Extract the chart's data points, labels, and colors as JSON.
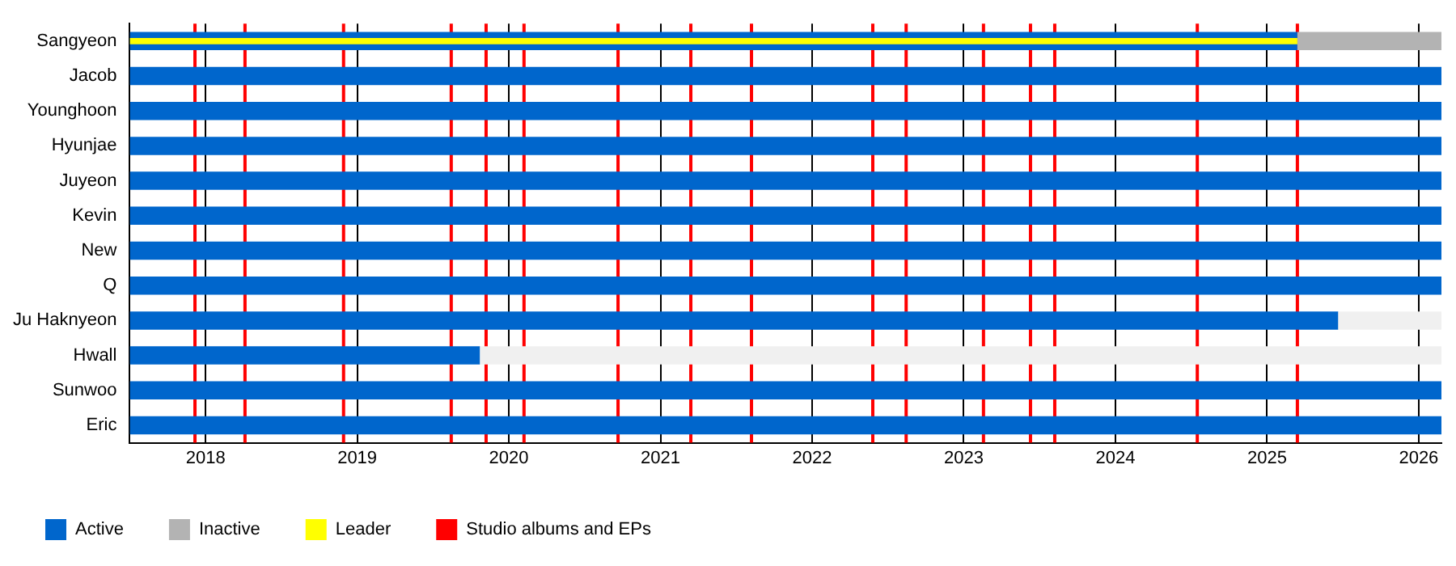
{
  "chart_data": {
    "type": "bar",
    "orientation": "horizontal",
    "categories": [
      "Sangyeon",
      "Jacob",
      "Younghoon",
      "Hyunjae",
      "Juyeon",
      "Kevin",
      "New",
      "Q",
      "Ju Haknyeon",
      "Hwall",
      "Sunwoo",
      "Eric"
    ],
    "series": [
      {
        "name": "Active",
        "color": "#0066cc",
        "base": [
          2017.5,
          2017.5,
          2017.5,
          2017.5,
          2017.5,
          2017.5,
          2017.5,
          2017.5,
          2017.5,
          2017.5,
          2017.5,
          2017.5
        ],
        "values": [
          7.7,
          8.65,
          8.65,
          8.65,
          8.65,
          8.65,
          8.65,
          8.65,
          7.97,
          2.31,
          8.65,
          8.65
        ]
      },
      {
        "name": "Inactive",
        "color": "#b3b3b3",
        "base": [
          2025.2,
          null,
          null,
          null,
          null,
          null,
          null,
          null,
          null,
          null,
          null,
          null
        ],
        "values": [
          0.95,
          null,
          null,
          null,
          null,
          null,
          null,
          null,
          null,
          null,
          null,
          null
        ]
      },
      {
        "name": "Leader",
        "color": "#ffff00",
        "base": [
          2017.5,
          null,
          null,
          null,
          null,
          null,
          null,
          null,
          null,
          null,
          null,
          null
        ],
        "values": [
          7.7,
          null,
          null,
          null,
          null,
          null,
          null,
          null,
          null,
          null,
          null,
          null
        ]
      },
      {
        "color": "#f0f0f0",
        "base": [
          null,
          null,
          null,
          null,
          null,
          null,
          null,
          null,
          2025.47,
          2019.81,
          null,
          null
        ],
        "values": [
          null,
          null,
          null,
          null,
          null,
          null,
          null,
          null,
          0.68,
          6.34,
          null,
          null
        ]
      },
      {
        "name": "Studio albums and EPs",
        "color": "#ff0000",
        "values": [
          null,
          null,
          null,
          null,
          null,
          null,
          null,
          null,
          null,
          null,
          null,
          null
        ]
      }
    ],
    "xlim": [
      2017.5,
      2026.15
    ],
    "xticks": [
      2018,
      2019,
      2020,
      2021,
      2022,
      2023,
      2024,
      2025,
      2026
    ],
    "grid": "x",
    "legend": "bottom",
    "ref_lines": [
      {
        "axis": "x",
        "value": 2017.93,
        "color": "#ff0000"
      },
      {
        "axis": "x",
        "value": 2018.26,
        "color": "#ff0000"
      },
      {
        "axis": "x",
        "value": 2018.91,
        "color": "#ff0000"
      },
      {
        "axis": "x",
        "value": 2019.62,
        "color": "#ff0000"
      },
      {
        "axis": "x",
        "value": 2019.85,
        "color": "#ff0000"
      },
      {
        "axis": "x",
        "value": 2020.1,
        "color": "#ff0000"
      },
      {
        "axis": "x",
        "value": 2020.72,
        "color": "#ff0000"
      },
      {
        "axis": "x",
        "value": 2021.2,
        "color": "#ff0000"
      },
      {
        "axis": "x",
        "value": 2021.6,
        "color": "#ff0000"
      },
      {
        "axis": "x",
        "value": 2022.4,
        "color": "#ff0000"
      },
      {
        "axis": "x",
        "value": 2022.62,
        "color": "#ff0000"
      },
      {
        "axis": "x",
        "value": 2023.13,
        "color": "#ff0000"
      },
      {
        "axis": "x",
        "value": 2023.44,
        "color": "#ff0000"
      },
      {
        "axis": "x",
        "value": 2023.6,
        "color": "#ff0000"
      },
      {
        "axis": "x",
        "value": 2024.54,
        "color": "#ff0000"
      },
      {
        "axis": "x",
        "value": 2025.2,
        "color": "#ff0000"
      }
    ]
  }
}
